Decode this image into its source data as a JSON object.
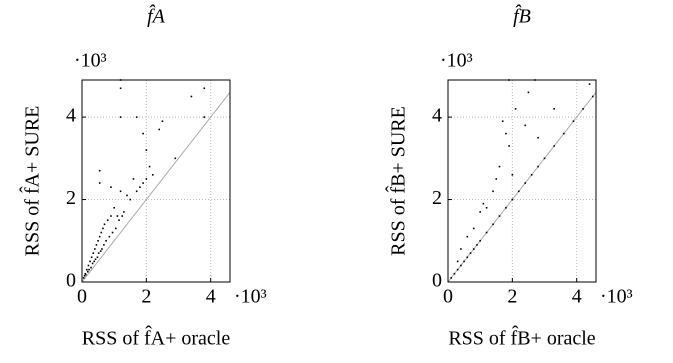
{
  "chart_data": [
    {
      "type": "scatter",
      "title": "f̂A",
      "x_label": "RSS of f̂A+ oracle",
      "y_label": "RSS of f̂A+ SURE",
      "x_multiplier": "·10³",
      "y_multiplier": "·10³",
      "xlim": [
        0,
        4.6
      ],
      "ylim": [
        0,
        4.9
      ],
      "xticks": [
        0,
        2,
        4
      ],
      "yticks": [
        0,
        2,
        4
      ],
      "grid": true,
      "reference_line": "identity",
      "color": "#000000",
      "x": [
        0.05,
        0.08,
        0.1,
        0.12,
        0.15,
        0.18,
        0.2,
        0.22,
        0.25,
        0.28,
        0.3,
        0.33,
        0.35,
        0.38,
        0.4,
        0.42,
        0.45,
        0.48,
        0.5,
        0.52,
        0.55,
        0.58,
        0.6,
        0.62,
        0.65,
        0.68,
        0.7,
        0.75,
        0.8,
        0.85,
        0.9,
        0.95,
        1.0,
        1.05,
        1.1,
        1.15,
        1.2,
        1.25,
        1.3,
        1.4,
        1.5,
        1.6,
        1.7,
        1.8,
        1.9,
        2.0,
        2.1,
        2.2,
        2.4,
        2.5,
        2.9,
        3.4,
        3.8,
        3.8,
        1.2,
        1.2,
        1.2,
        0.55,
        0.55,
        0.9,
        1.7,
        1.9,
        2.0
      ],
      "values": [
        0.1,
        0.15,
        0.2,
        0.18,
        0.3,
        0.25,
        0.4,
        0.3,
        0.5,
        0.35,
        0.6,
        0.45,
        0.7,
        0.5,
        0.8,
        0.55,
        0.9,
        0.6,
        1.0,
        0.7,
        1.1,
        0.75,
        1.2,
        0.8,
        1.3,
        0.9,
        1.4,
        1.0,
        1.5,
        1.1,
        1.6,
        1.2,
        1.8,
        1.3,
        1.6,
        1.5,
        2.2,
        1.6,
        1.7,
        2.1,
        2.0,
        2.5,
        4.0,
        2.3,
        3.6,
        3.2,
        2.8,
        2.6,
        3.7,
        3.9,
        3.0,
        4.5,
        4.7,
        4.0,
        4.9,
        4.7,
        4.0,
        2.7,
        2.4,
        2.3,
        2.2,
        2.4,
        2.5
      ]
    },
    {
      "type": "scatter",
      "title": "f̂B",
      "x_label": "RSS of f̂B+ oracle",
      "y_label": "RSS of f̂B+ SURE",
      "x_multiplier": "·10³",
      "y_multiplier": "·10³",
      "xlim": [
        0,
        4.6
      ],
      "ylim": [
        0,
        4.9
      ],
      "xticks": [
        0,
        2,
        4
      ],
      "yticks": [
        0,
        2,
        4
      ],
      "grid": true,
      "reference_line": "identity",
      "color": "#000000",
      "x": [
        0.1,
        0.2,
        0.3,
        0.4,
        0.5,
        0.6,
        0.7,
        0.8,
        0.9,
        1.0,
        1.2,
        1.4,
        1.6,
        1.8,
        2.0,
        2.2,
        2.4,
        2.6,
        2.8,
        3.0,
        3.3,
        3.6,
        3.9,
        4.2,
        4.5,
        0.3,
        0.4,
        0.6,
        0.8,
        1.0,
        1.1,
        1.2,
        1.4,
        1.5,
        1.6,
        1.7,
        1.8,
        1.9,
        2.0,
        2.1,
        2.4,
        2.5,
        2.7,
        2.8,
        1.9,
        3.3,
        4.4
      ],
      "values": [
        0.1,
        0.2,
        0.3,
        0.4,
        0.5,
        0.6,
        0.7,
        0.8,
        0.9,
        1.0,
        1.2,
        1.4,
        1.6,
        1.8,
        2.0,
        2.2,
        2.4,
        2.6,
        2.8,
        3.0,
        3.3,
        3.6,
        3.9,
        4.2,
        4.5,
        0.5,
        0.8,
        1.1,
        1.3,
        1.7,
        1.9,
        1.8,
        2.2,
        2.5,
        2.8,
        3.9,
        3.6,
        3.3,
        2.6,
        4.2,
        3.8,
        4.6,
        4.9,
        3.5,
        4.9,
        4.2,
        4.8
      ]
    }
  ]
}
